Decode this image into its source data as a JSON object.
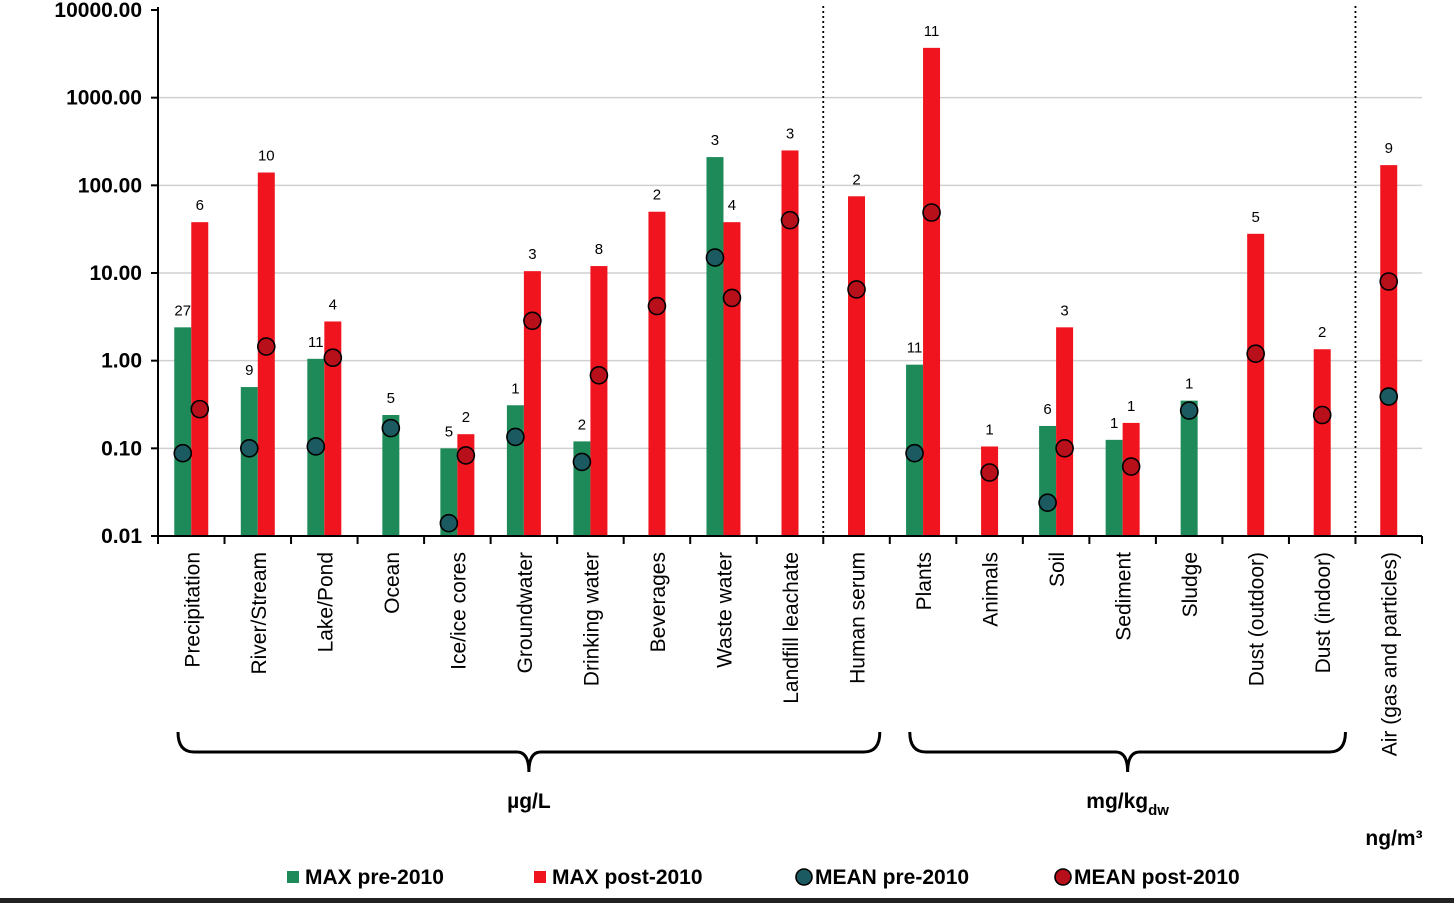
{
  "chart_data": {
    "type": "bar",
    "scale": "log",
    "ylim": [
      0.01,
      10000
    ],
    "yticks": [
      "0.01",
      "0.10",
      "1.00",
      "10.00",
      "100.00",
      "1000.00",
      "10000.00"
    ],
    "grid": true,
    "legend_position": "bottom",
    "colors": {
      "max_pre": "#1e8a5a",
      "max_post": "#f0141e",
      "mean_pre": "#1a5a60",
      "mean_post": "#b8101a"
    },
    "legend": [
      "MAX pre-2010",
      "MAX post-2010",
      "MEAN pre-2010",
      "MEAN post-2010"
    ],
    "units": [
      {
        "label": "µg/L",
        "from": 0,
        "to": 10
      },
      {
        "label": "mg/kg",
        "sub": "dw",
        "from": 11,
        "to": 17
      },
      {
        "label": "ng/m³",
        "from": 18,
        "to": 18
      }
    ],
    "separators_after": [
      9,
      17
    ],
    "categories": [
      "Precipitation",
      "River/Stream",
      "Lake/Pond",
      "Ocean",
      "Ice/ice cores",
      "Groundwater",
      "Drinking water",
      "Beverages",
      "Waste water",
      "Landfill leachate",
      "Human serum",
      "Plants",
      "Animals",
      "Soil",
      "Sediment",
      "Sludge",
      "Dust (outdoor)",
      "Dust (indoor)",
      "Air (gas and particles)"
    ],
    "series": [
      {
        "name": "MAX pre-2010",
        "values": [
          2.4,
          0.5,
          1.05,
          0.24,
          0.1,
          0.31,
          0.12,
          null,
          210,
          null,
          null,
          0.9,
          null,
          0.18,
          0.125,
          0.35,
          null,
          null,
          null
        ]
      },
      {
        "name": "MAX post-2010",
        "values": [
          38,
          140,
          2.8,
          null,
          0.145,
          10.5,
          12,
          50,
          38,
          250,
          75,
          3700,
          0.105,
          2.4,
          0.195,
          null,
          28,
          1.35,
          170
        ]
      },
      {
        "name": "MEAN pre-2010",
        "values": [
          0.088,
          0.1,
          0.105,
          0.17,
          0.014,
          0.135,
          0.07,
          null,
          15,
          null,
          null,
          0.088,
          null,
          0.024,
          null,
          0.27,
          null,
          null,
          0.39
        ]
      },
      {
        "name": "MEAN post-2010",
        "values": [
          0.28,
          1.45,
          1.08,
          null,
          0.083,
          2.85,
          0.68,
          4.2,
          5.2,
          40,
          6.5,
          49,
          0.053,
          0.1,
          0.062,
          null,
          1.2,
          0.24,
          8
        ]
      }
    ],
    "counts_pre": [
      "27",
      "9",
      "11",
      "5",
      "5",
      "1",
      "2",
      "",
      "3",
      "",
      "",
      "11",
      "",
      "6",
      "1",
      "1",
      "",
      "",
      ""
    ],
    "counts_post": [
      "6",
      "10",
      "4",
      "",
      "2",
      "3",
      "8",
      "2",
      "4",
      "3",
      "2",
      "11",
      "1",
      "3",
      "1",
      "",
      "5",
      "2",
      "9"
    ]
  }
}
